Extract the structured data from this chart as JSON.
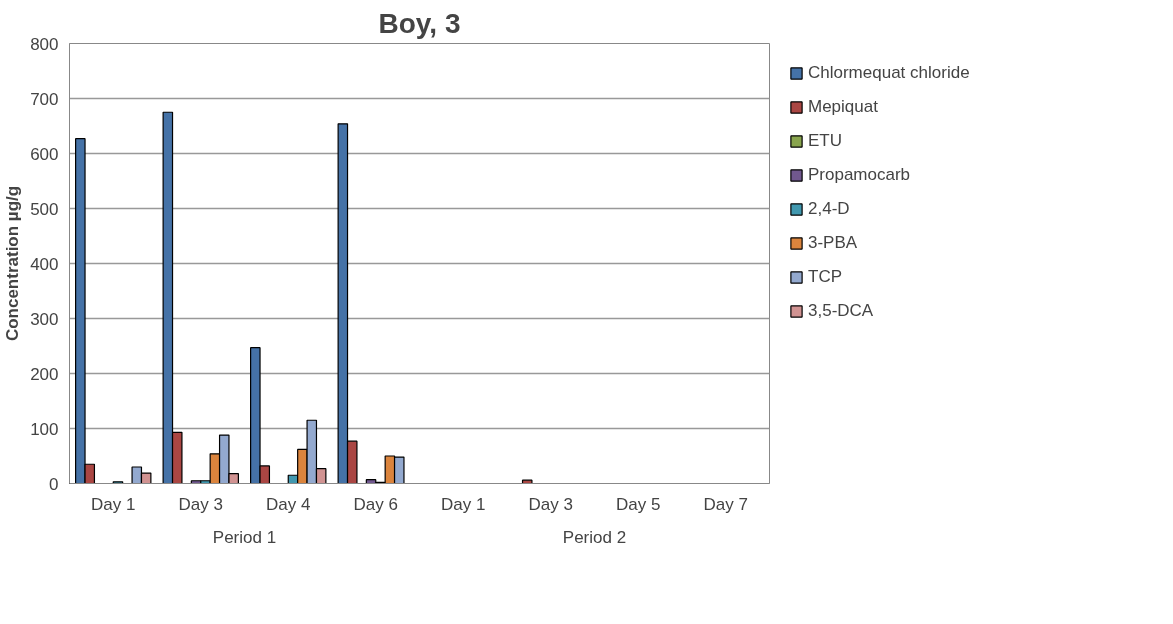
{
  "chart_data": {
    "type": "bar",
    "title": "Boy, 3",
    "ylabel": "Concentration µg/g",
    "categories": [
      "Day 1",
      "Day 3",
      "Day 4",
      "Day 6",
      "Day 1",
      "Day 3",
      "Day 5",
      "Day 7"
    ],
    "annotations": [
      "Period 1",
      "Period 2"
    ],
    "series": [
      {
        "name": "Chlormequat chloride",
        "color": "#4572a7",
        "values": [
          627,
          675,
          247,
          654,
          null,
          null,
          null,
          null
        ]
      },
      {
        "name": "Mepiquat",
        "color": "#aa4643",
        "values": [
          35,
          93,
          32,
          77,
          null,
          6,
          null,
          null
        ]
      },
      {
        "name": "ETU",
        "color": "#89a54e",
        "values": [
          null,
          null,
          null,
          null,
          null,
          null,
          null,
          null
        ]
      },
      {
        "name": "Propamocarb",
        "color": "#71588f",
        "values": [
          null,
          5,
          null,
          7,
          null,
          null,
          null,
          null
        ]
      },
      {
        "name": "2,4-D",
        "color": "#4198af",
        "values": [
          3,
          5,
          15,
          2,
          null,
          null,
          null,
          null
        ]
      },
      {
        "name": "3-PBA",
        "color": "#db843d",
        "values": [
          null,
          54,
          62,
          50,
          null,
          null,
          null,
          null
        ]
      },
      {
        "name": "TCP",
        "color": "#93a9cf",
        "values": [
          30,
          88,
          115,
          48,
          null,
          null,
          null,
          null
        ]
      },
      {
        "name": "3,5-DCA",
        "color": "#d19392",
        "values": [
          19,
          18,
          27,
          null,
          null,
          null,
          null,
          null
        ]
      }
    ],
    "ylim": [
      0,
      800
    ],
    "yticks": [
      0,
      100,
      200,
      300,
      400,
      500,
      600,
      700,
      800
    ],
    "grid": "y",
    "legend": "right"
  }
}
